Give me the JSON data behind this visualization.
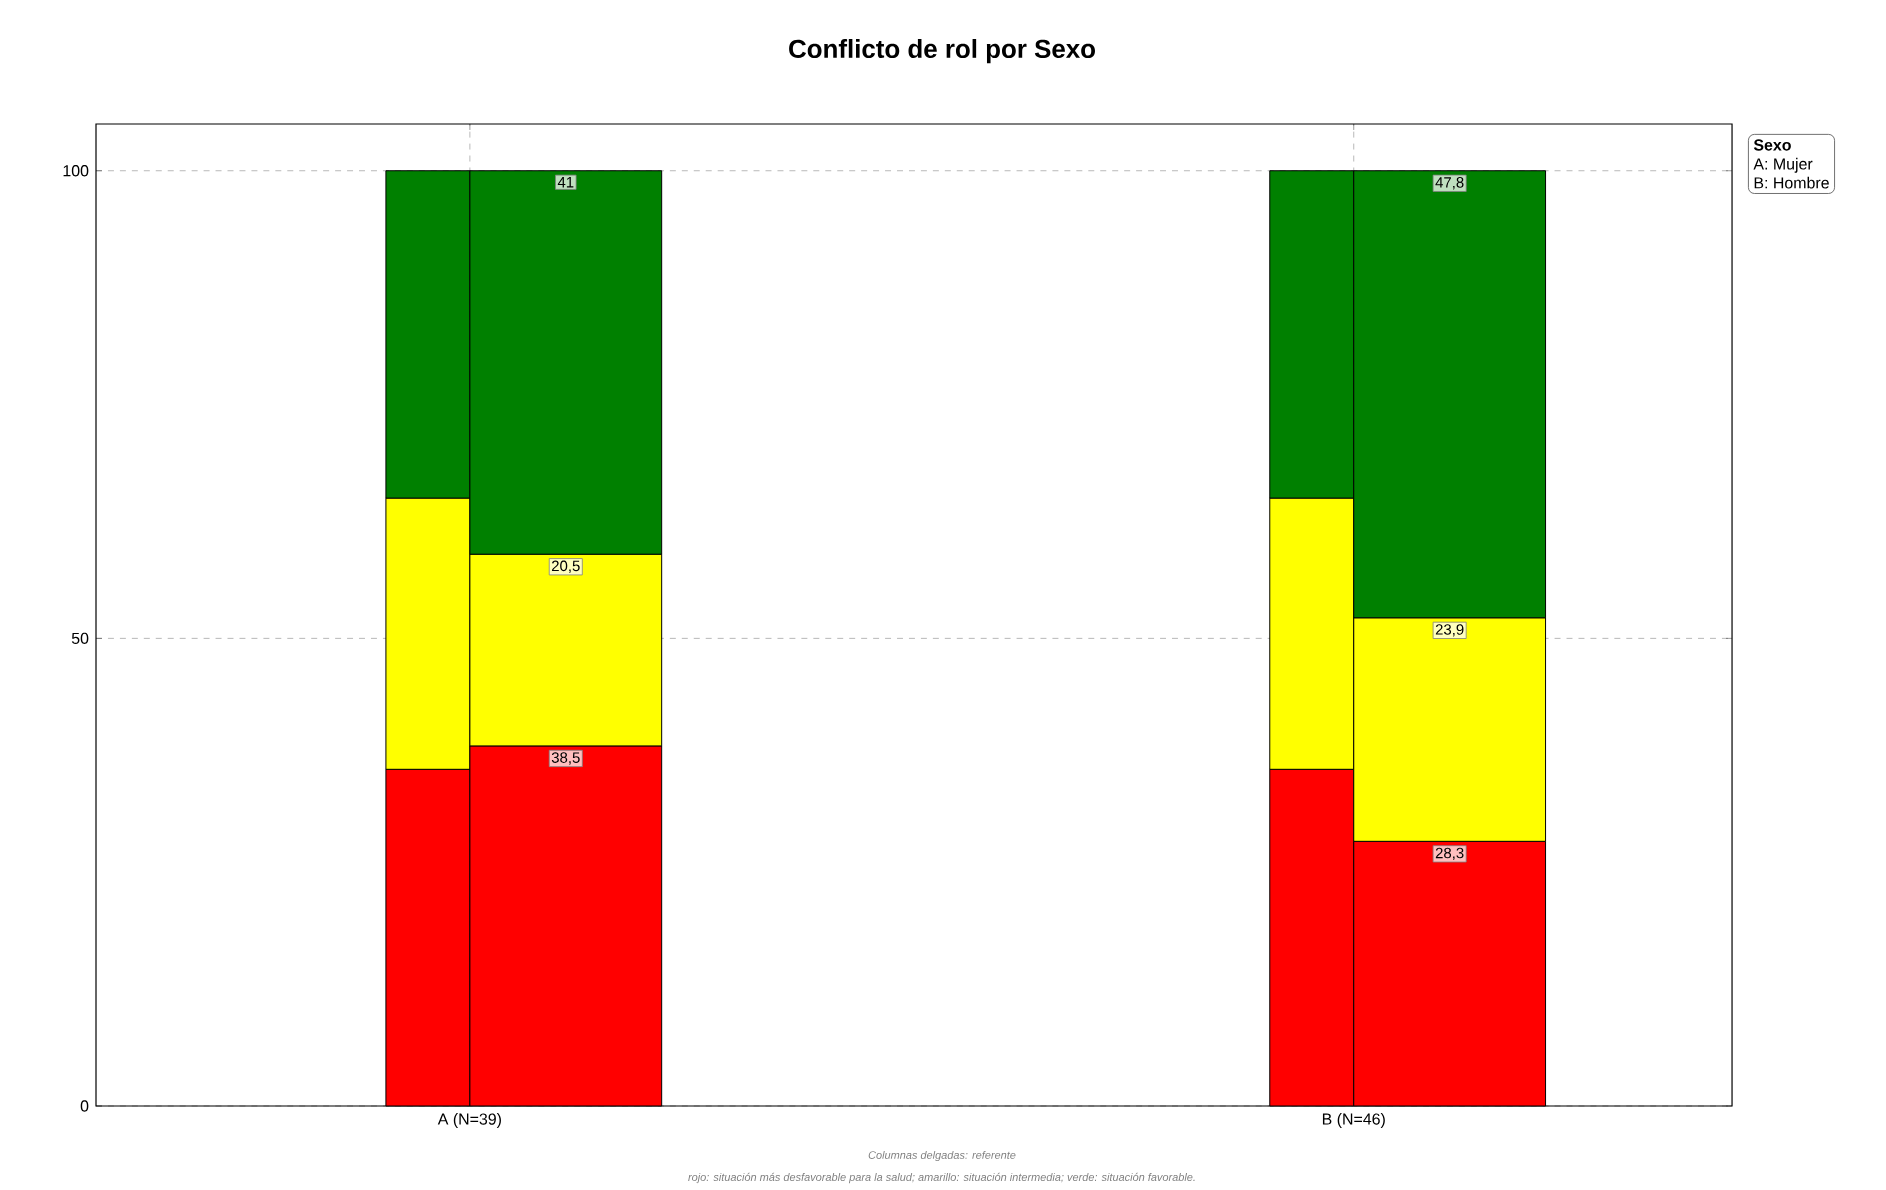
{
  "chart_data": {
    "type": "bar",
    "title": "Conflicto de rol por Sexo",
    "categories": [
      "A (N=39)",
      "B (N=46)"
    ],
    "series": [
      {
        "color": "#ff0000",
        "base": [
          0,
          0
        ],
        "values": [
          36,
          36
        ]
      },
      {
        "color": "#ffff00",
        "base": [
          36,
          36
        ],
        "values": [
          29,
          29
        ]
      },
      {
        "color": "#008000",
        "base": [
          65,
          65
        ],
        "values": [
          35,
          35
        ]
      },
      {
        "color": "#ff0000",
        "base": [
          0,
          0
        ],
        "values": [
          38.5,
          28.3
        ],
        "value_labels": [
          "38,5",
          "28,3"
        ]
      },
      {
        "color": "#ffff00",
        "base": [
          38.5,
          28.3
        ],
        "values": [
          20.5,
          23.9
        ],
        "value_labels": [
          "20,5",
          "23,9"
        ]
      },
      {
        "color": "#008000",
        "base": [
          59,
          52.2
        ],
        "values": [
          41,
          47.8
        ],
        "value_labels": [
          "41",
          "47,8"
        ]
      }
    ],
    "ylim": [
      0,
      105
    ],
    "yticks": [
      0,
      50,
      100
    ],
    "grid": true,
    "legend_title": "Sexo",
    "annotations": [
      "A: Mujer",
      "B: Hombre",
      "Columnas delgadas: referente",
      "rojo: situación más desfavorable para la salud; amarillo: situación intermedia; verde: situación favorable."
    ]
  }
}
